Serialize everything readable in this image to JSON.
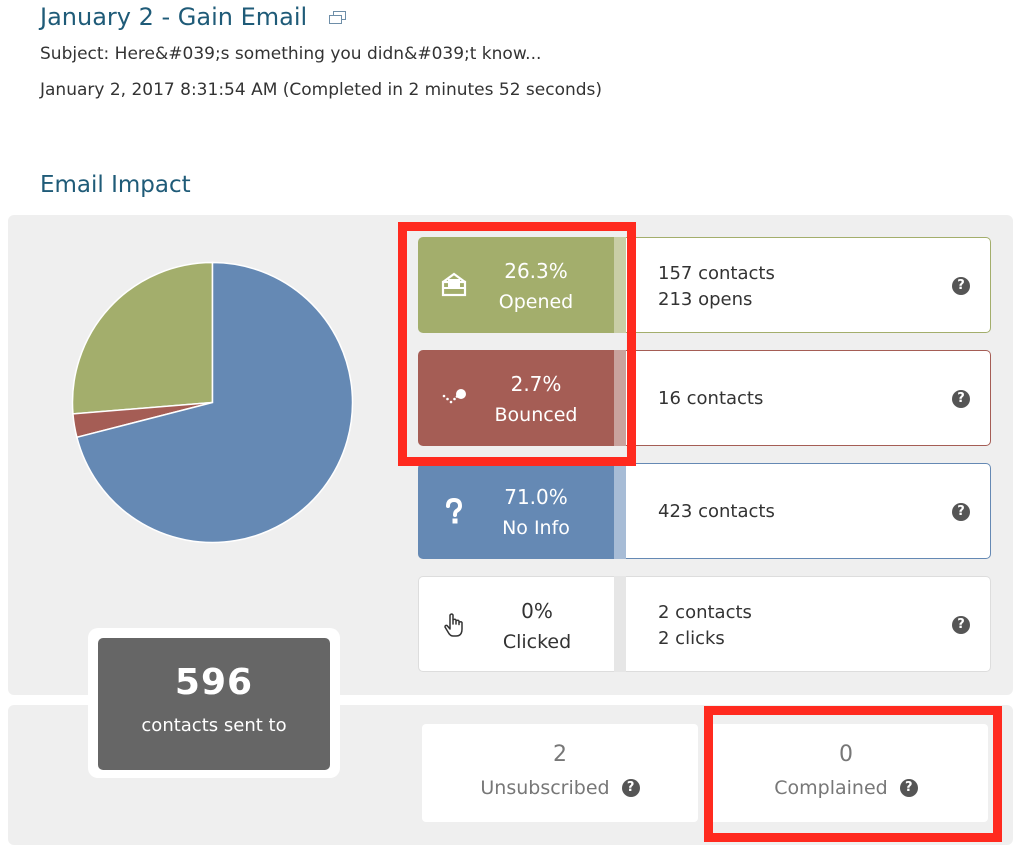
{
  "header": {
    "title": "January 2 - Gain Email",
    "subject": "Subject: Here&#039;s something you didn&#039;t know...",
    "sent_date": "January 2, 2017 8:31:54 AM (Completed in 2 minutes 52 seconds)"
  },
  "impact": {
    "heading": "Email Impact",
    "sent": {
      "count": "596",
      "label": "contacts sent to"
    },
    "stats": {
      "opened": {
        "percent": "26.3%",
        "label": "Opened",
        "detail1": "157 contacts",
        "detail2": "213 opens",
        "color": "#a3ae6c"
      },
      "bounced": {
        "percent": "2.7%",
        "label": "Bounced",
        "detail1": "16 contacts",
        "color": "#a55d55"
      },
      "noinfo": {
        "percent": "71.0%",
        "label": "No Info",
        "detail1": "423 contacts",
        "color": "#6589b4"
      },
      "clicked": {
        "percent": "0%",
        "label": "Clicked",
        "detail1": "2 contacts",
        "detail2": "2 clicks"
      }
    },
    "unsubscribed": {
      "count": "2",
      "label": "Unsubscribed"
    },
    "complained": {
      "count": "0",
      "label": "Complained"
    },
    "help_glyph": "?"
  },
  "icons": {
    "popout": "popout-window-icon",
    "opened": "open-envelope-icon",
    "bounced": "bounce-icon",
    "noinfo": "question-mark-icon",
    "clicked": "pointer-hand-icon",
    "help": "help-circle-icon"
  },
  "chart_data": {
    "type": "pie",
    "slices": [
      {
        "label": "Opened",
        "value": 26.3,
        "color": "#a3ae6c"
      },
      {
        "label": "Bounced",
        "value": 2.7,
        "color": "#a55d55"
      },
      {
        "label": "No Info",
        "value": 71.0,
        "color": "#6589b4"
      }
    ]
  }
}
